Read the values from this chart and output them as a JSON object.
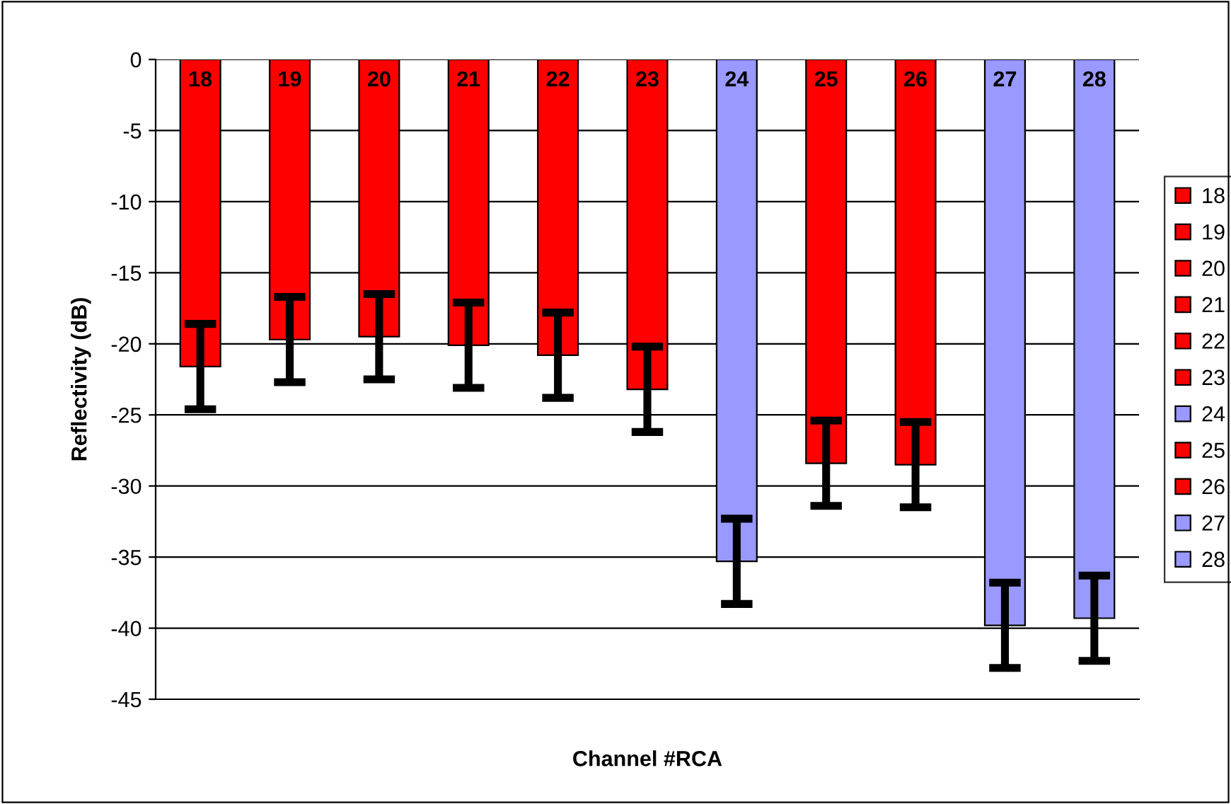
{
  "chart_data": {
    "type": "bar",
    "xlabel": "Channel #RCA",
    "ylabel": "Reflectivity (dB)",
    "categories": [
      "18",
      "19",
      "20",
      "21",
      "22",
      "23",
      "24",
      "25",
      "26",
      "27",
      "28"
    ],
    "series": [
      {
        "name": "18",
        "color": "#ff0000",
        "values": [
          -21.6,
          null,
          null,
          null,
          null,
          null,
          null,
          null,
          null,
          null,
          null
        ],
        "errors": [
          3,
          null,
          null,
          null,
          null,
          null,
          null,
          null,
          null,
          null,
          null
        ]
      },
      {
        "name": "19",
        "color": "#ff0000",
        "values": [
          null,
          -19.7,
          null,
          null,
          null,
          null,
          null,
          null,
          null,
          null,
          null
        ],
        "errors": [
          null,
          3,
          null,
          null,
          null,
          null,
          null,
          null,
          null,
          null,
          null
        ]
      },
      {
        "name": "20",
        "color": "#ff0000",
        "values": [
          null,
          null,
          -19.5,
          null,
          null,
          null,
          null,
          null,
          null,
          null,
          null
        ],
        "errors": [
          null,
          null,
          3,
          null,
          null,
          null,
          null,
          null,
          null,
          null,
          null
        ]
      },
      {
        "name": "21",
        "color": "#ff0000",
        "values": [
          null,
          null,
          null,
          -20.1,
          null,
          null,
          null,
          null,
          null,
          null,
          null
        ],
        "errors": [
          null,
          null,
          null,
          3,
          null,
          null,
          null,
          null,
          null,
          null,
          null
        ]
      },
      {
        "name": "22",
        "color": "#ff0000",
        "values": [
          null,
          null,
          null,
          null,
          -20.8,
          null,
          null,
          null,
          null,
          null,
          null
        ],
        "errors": [
          null,
          null,
          null,
          null,
          3,
          null,
          null,
          null,
          null,
          null,
          null
        ]
      },
      {
        "name": "23",
        "color": "#ff0000",
        "values": [
          null,
          null,
          null,
          null,
          null,
          -23.2,
          null,
          null,
          null,
          null,
          null
        ],
        "errors": [
          null,
          null,
          null,
          null,
          null,
          3,
          null,
          null,
          null,
          null,
          null
        ]
      },
      {
        "name": "24",
        "color": "#9999ff",
        "values": [
          null,
          null,
          null,
          null,
          null,
          null,
          -35.3,
          null,
          null,
          null,
          null
        ],
        "errors": [
          null,
          null,
          null,
          null,
          null,
          null,
          3,
          null,
          null,
          null,
          null
        ]
      },
      {
        "name": "25",
        "color": "#ff0000",
        "values": [
          null,
          null,
          null,
          null,
          null,
          null,
          null,
          -28.4,
          null,
          null,
          null
        ],
        "errors": [
          null,
          null,
          null,
          null,
          null,
          null,
          null,
          3,
          null,
          null,
          null
        ]
      },
      {
        "name": "26",
        "color": "#ff0000",
        "values": [
          null,
          null,
          null,
          null,
          null,
          null,
          null,
          null,
          -28.5,
          null,
          null
        ],
        "errors": [
          null,
          null,
          null,
          null,
          null,
          null,
          null,
          null,
          3,
          null,
          null
        ]
      },
      {
        "name": "27",
        "color": "#9999ff",
        "values": [
          null,
          null,
          null,
          null,
          null,
          null,
          null,
          null,
          null,
          -39.8,
          null
        ],
        "errors": [
          null,
          null,
          null,
          null,
          null,
          null,
          null,
          null,
          null,
          3,
          null
        ]
      },
      {
        "name": "28",
        "color": "#9999ff",
        "values": [
          null,
          null,
          null,
          null,
          null,
          null,
          null,
          null,
          null,
          null,
          -39.3
        ],
        "errors": [
          null,
          null,
          null,
          null,
          null,
          null,
          null,
          null,
          null,
          null,
          3
        ]
      }
    ],
    "ylim": [
      -45,
      0
    ],
    "yticks": [
      0,
      -5,
      -10,
      -15,
      -20,
      -25,
      -30,
      -35,
      -40,
      -45
    ],
    "grid": "y",
    "legend": "right"
  }
}
